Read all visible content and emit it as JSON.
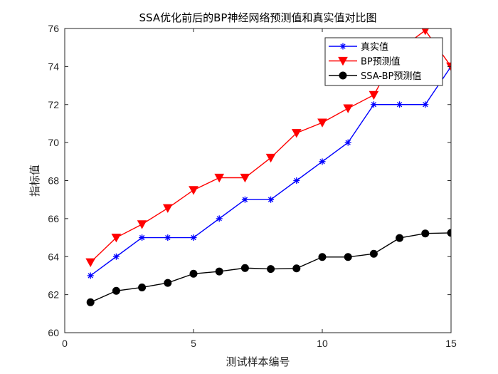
{
  "chart_data": {
    "type": "line",
    "title": "SSA优化前后的BP神经网络预测值和真实值对比图",
    "xlabel": "测试样本编号",
    "ylabel": "指标值",
    "xlim": [
      0,
      15
    ],
    "ylim": [
      60,
      76
    ],
    "xticks": [
      0,
      5,
      10,
      15
    ],
    "yticks": [
      60,
      62,
      64,
      66,
      68,
      70,
      72,
      74,
      76
    ],
    "grid": false,
    "legend_position": "top-right",
    "x": [
      1,
      2,
      3,
      4,
      5,
      6,
      7,
      8,
      9,
      10,
      11,
      12,
      13,
      14,
      15
    ],
    "series": [
      {
        "name": "真实值",
        "color": "#0000ff",
        "marker": "asterisk",
        "values": [
          63,
          64,
          65,
          65,
          65,
          66,
          67,
          67,
          68,
          69,
          70,
          72,
          72,
          72,
          74
        ]
      },
      {
        "name": "BP预测值",
        "color": "#ff0000",
        "marker": "triangle-down",
        "values": [
          63.7,
          65.0,
          65.7,
          66.55,
          67.5,
          68.15,
          68.15,
          69.2,
          70.5,
          71.05,
          71.8,
          72.5,
          74.9,
          75.9,
          74.0
        ]
      },
      {
        "name": "SSA-BP预测值",
        "color": "#000000",
        "marker": "circle",
        "values": [
          61.6,
          62.2,
          62.38,
          62.62,
          63.1,
          63.22,
          63.4,
          63.35,
          63.38,
          63.98,
          63.98,
          64.15,
          64.98,
          65.22,
          65.25
        ]
      }
    ]
  }
}
